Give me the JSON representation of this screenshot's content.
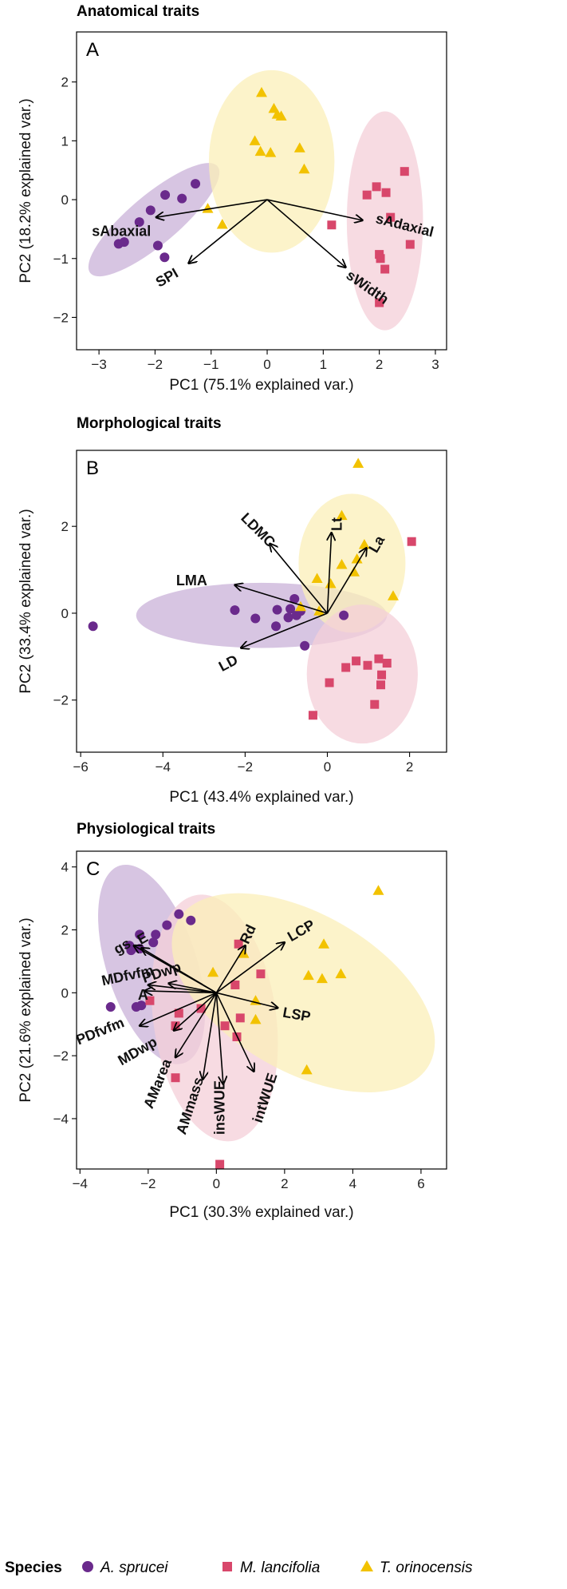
{
  "colors": {
    "A. sprucei": "#6a2a8c",
    "M. lancifolia": "#d8476b",
    "T. orinocensis": "#f2c200",
    "ellipse": {
      "A. sprucei": "#c9b2d8",
      "M. lancifolia": "#f4cfd8",
      "T. orinocensis": "#fbefb8"
    }
  },
  "legend": {
    "title": "Species",
    "items": [
      {
        "label": "A. sprucei",
        "shape": "circle"
      },
      {
        "label": "M. lancifolia",
        "shape": "square"
      },
      {
        "label": "T. orinocensis",
        "shape": "triangle"
      }
    ]
  },
  "chart_data": [
    {
      "type": "scatter",
      "title": "Anatomical traits",
      "panel": "A",
      "xlabel": "PC1 (75.1% explained var.)",
      "ylabel": "PC2 (18.2% explained var.)",
      "xlim": [
        -3.4,
        3.2
      ],
      "ylim": [
        -2.55,
        2.85
      ],
      "xticks": [
        -3,
        -2,
        -1,
        0,
        1,
        2,
        3
      ],
      "yticks": [
        -2,
        -1,
        0,
        1,
        2
      ],
      "series": [
        {
          "name": "A. sprucei",
          "shape": "circle",
          "points": [
            [
              -1.28,
              0.27
            ],
            [
              -1.52,
              0.02
            ],
            [
              -1.82,
              0.08
            ],
            [
              -2.08,
              -0.18
            ],
            [
              -2.28,
              -0.38
            ],
            [
              -2.55,
              -0.72
            ],
            [
              -2.65,
              -0.75
            ],
            [
              -1.95,
              -0.78
            ],
            [
              -1.83,
              -0.98
            ]
          ]
        },
        {
          "name": "M. lancifolia",
          "shape": "square",
          "points": [
            [
              2.45,
              0.48
            ],
            [
              1.95,
              0.22
            ],
            [
              2.12,
              0.12
            ],
            [
              1.78,
              0.08
            ],
            [
              2.2,
              -0.3
            ],
            [
              1.15,
              -0.43
            ],
            [
              2.55,
              -0.76
            ],
            [
              2.0,
              -0.93
            ],
            [
              2.02,
              -1.0
            ],
            [
              2.1,
              -1.18
            ],
            [
              2.0,
              -1.75
            ]
          ]
        },
        {
          "name": "T. orinocensis",
          "shape": "triangle",
          "points": [
            [
              -0.1,
              1.82
            ],
            [
              0.12,
              1.55
            ],
            [
              0.18,
              1.45
            ],
            [
              0.25,
              1.42
            ],
            [
              -0.22,
              1.0
            ],
            [
              -0.12,
              0.82
            ],
            [
              0.06,
              0.8
            ],
            [
              0.58,
              0.88
            ],
            [
              0.66,
              0.52
            ],
            [
              -1.06,
              -0.15
            ],
            [
              -0.8,
              -0.42
            ]
          ]
        }
      ],
      "ellipses": [
        {
          "species": "A. sprucei",
          "center": [
            -2.02,
            -0.34
          ],
          "rx": 1.48,
          "ry": 0.42,
          "angle_deg": 40
        },
        {
          "species": "T. orinocensis",
          "center": [
            0.08,
            0.65
          ],
          "rx": 1.12,
          "ry": 1.55,
          "angle_deg": 0
        },
        {
          "species": "M. lancifolia",
          "center": [
            2.1,
            -0.36
          ],
          "rx": 0.68,
          "ry": 1.86,
          "angle_deg": 0
        }
      ],
      "loadings": [
        {
          "label": "sAbaxial",
          "end": [
            -1.98,
            -0.3
          ],
          "label_pos": [
            -2.6,
            -0.55
          ],
          "label_angle": 0
        },
        {
          "label": "SPI",
          "end": [
            -1.4,
            -1.08
          ],
          "label_pos": [
            -1.78,
            -1.34
          ],
          "label_angle": -30
        },
        {
          "label": "sAdaxial",
          "end": [
            1.7,
            -0.35
          ],
          "label_pos": [
            2.45,
            -0.45
          ],
          "label_angle": 14
        },
        {
          "label": "sWidth",
          "end": [
            1.4,
            -1.15
          ],
          "label_pos": [
            1.78,
            -1.5
          ],
          "label_angle": 35
        }
      ]
    },
    {
      "type": "scatter",
      "title": "Morphological traits",
      "panel": "B",
      "xlabel": "PC1 (43.4% explained var.)",
      "ylabel": "PC2 (33.4% explained var.)",
      "xlim": [
        -6.1,
        2.9
      ],
      "ylim": [
        -3.2,
        3.75
      ],
      "xticks": [
        -6,
        -4,
        -2,
        0,
        2
      ],
      "yticks": [
        -2,
        0,
        2
      ],
      "series": [
        {
          "name": "A. sprucei",
          "shape": "circle",
          "points": [
            [
              -5.7,
              -0.3
            ],
            [
              -2.25,
              0.07
            ],
            [
              -1.75,
              -0.12
            ],
            [
              -1.22,
              0.08
            ],
            [
              -1.25,
              -0.3
            ],
            [
              -0.95,
              -0.1
            ],
            [
              -0.75,
              -0.05
            ],
            [
              -0.55,
              -0.75
            ],
            [
              -0.65,
              0.05
            ],
            [
              -0.8,
              0.33
            ],
            [
              0.4,
              -0.05
            ],
            [
              -0.9,
              0.1
            ]
          ]
        },
        {
          "name": "M. lancifolia",
          "shape": "square",
          "points": [
            [
              2.05,
              1.65
            ],
            [
              0.05,
              -1.6
            ],
            [
              -0.35,
              -2.35
            ],
            [
              0.45,
              -1.25
            ],
            [
              0.98,
              -1.2
            ],
            [
              1.25,
              -1.05
            ],
            [
              1.32,
              -1.42
            ],
            [
              1.45,
              -1.15
            ],
            [
              1.3,
              -1.65
            ],
            [
              1.15,
              -2.1
            ],
            [
              0.7,
              -1.1
            ]
          ]
        },
        {
          "name": "T. orinocensis",
          "shape": "triangle",
          "points": [
            [
              0.75,
              3.45
            ],
            [
              0.35,
              2.25
            ],
            [
              0.9,
              1.58
            ],
            [
              -0.65,
              0.15
            ],
            [
              -0.25,
              0.8
            ],
            [
              0.35,
              1.12
            ],
            [
              0.65,
              0.95
            ],
            [
              0.72,
              1.25
            ],
            [
              0.08,
              0.68
            ],
            [
              1.6,
              0.4
            ],
            [
              -0.2,
              0.05
            ]
          ]
        }
      ],
      "ellipses": [
        {
          "species": "A. sprucei",
          "center": [
            -1.6,
            -0.05
          ],
          "rx": 3.05,
          "ry": 0.75,
          "angle_deg": 0
        },
        {
          "species": "T. orinocensis",
          "center": [
            0.6,
            1.15
          ],
          "rx": 1.3,
          "ry": 1.6,
          "angle_deg": 0
        },
        {
          "species": "M. lancifolia",
          "center": [
            0.85,
            -1.4
          ],
          "rx": 1.35,
          "ry": 1.6,
          "angle_deg": 0
        }
      ],
      "loadings": [
        {
          "label": "LDMC",
          "end": [
            -1.4,
            1.6
          ],
          "label_pos": [
            -1.7,
            1.9
          ],
          "label_angle": 45
        },
        {
          "label": "Lt",
          "end": [
            0.1,
            1.85
          ],
          "label_pos": [
            0.26,
            2.05
          ],
          "label_angle": -90
        },
        {
          "label": "La",
          "end": [
            0.95,
            1.5
          ],
          "label_pos": [
            1.22,
            1.58
          ],
          "label_angle": -60
        },
        {
          "label": "LMA",
          "end": [
            -2.25,
            0.65
          ],
          "label_pos": [
            -3.3,
            0.73
          ],
          "label_angle": 0
        },
        {
          "label": "LD",
          "end": [
            -2.1,
            -0.8
          ],
          "label_pos": [
            -2.4,
            -1.17
          ],
          "label_angle": -28
        }
      ]
    },
    {
      "type": "scatter",
      "title": "Physiological traits",
      "panel": "C",
      "xlabel": "PC1 (30.3% explained var.)",
      "ylabel": "PC2 (21.6% explained var.)",
      "xlim": [
        -4.1,
        6.75
      ],
      "ylim": [
        -5.6,
        4.5
      ],
      "xticks": [
        -4,
        -2,
        0,
        2,
        4,
        6
      ],
      "yticks": [
        -4,
        -2,
        0,
        2,
        4
      ],
      "series": [
        {
          "name": "A. sprucei",
          "shape": "circle",
          "points": [
            [
              -1.1,
              2.5
            ],
            [
              -1.45,
              2.15
            ],
            [
              -0.75,
              2.3
            ],
            [
              -2.25,
              1.85
            ],
            [
              -1.78,
              1.85
            ],
            [
              -2.55,
              1.5
            ],
            [
              -2.25,
              1.4
            ],
            [
              -2.5,
              1.35
            ],
            [
              -1.85,
              1.6
            ],
            [
              -3.1,
              -0.45
            ],
            [
              -2.35,
              -0.45
            ],
            [
              -2.2,
              -0.4
            ]
          ]
        },
        {
          "name": "M. lancifolia",
          "shape": "square",
          "points": [
            [
              0.65,
              1.55
            ],
            [
              1.3,
              0.6
            ],
            [
              0.55,
              0.25
            ],
            [
              -1.95,
              -0.25
            ],
            [
              -1.1,
              -0.65
            ],
            [
              -0.45,
              -0.5
            ],
            [
              -1.2,
              -1.05
            ],
            [
              0.7,
              -0.8
            ],
            [
              0.25,
              -1.05
            ],
            [
              0.6,
              -1.4
            ],
            [
              -1.2,
              -2.7
            ],
            [
              0.1,
              -5.45
            ]
          ]
        },
        {
          "name": "T. orinocensis",
          "shape": "triangle",
          "points": [
            [
              4.75,
              3.25
            ],
            [
              3.15,
              1.55
            ],
            [
              2.7,
              0.55
            ],
            [
              3.1,
              0.45
            ],
            [
              3.65,
              0.6
            ],
            [
              1.15,
              -0.25
            ],
            [
              1.15,
              -0.85
            ],
            [
              -0.1,
              0.65
            ],
            [
              0.8,
              1.25
            ],
            [
              2.65,
              -2.45
            ]
          ]
        }
      ],
      "ellipses": [
        {
          "species": "A. sprucei",
          "center": [
            -1.9,
            0.9
          ],
          "rx": 1.32,
          "ry": 3.3,
          "angle_deg": 18
        },
        {
          "species": "M. lancifolia",
          "center": [
            -0.05,
            -0.8
          ],
          "rx": 1.8,
          "ry": 3.95,
          "angle_deg": 8
        },
        {
          "species": "T. orinocensis",
          "center": [
            2.55,
            0.0
          ],
          "rx": 4.25,
          "ry": 2.5,
          "angle_deg": -30
        }
      ],
      "loadings": [
        {
          "label": "gs",
          "end": [
            -2.42,
            1.5
          ],
          "label_pos": [
            -2.75,
            1.45
          ],
          "label_angle": -30
        },
        {
          "label": "E",
          "end": [
            -2.2,
            1.42
          ],
          "label_pos": [
            -2.15,
            1.7
          ],
          "label_angle": -30
        },
        {
          "label": "PDwp",
          "end": [
            -1.4,
            0.3
          ],
          "label_pos": [
            -1.6,
            0.62
          ],
          "label_angle": -18
        },
        {
          "label": "MDfvfm",
          "end": [
            -2.0,
            0.25
          ],
          "label_pos": [
            -2.6,
            0.52
          ],
          "label_angle": -12
        },
        {
          "label": "A",
          "end": [
            -2.1,
            0.06
          ],
          "label_pos": [
            -2.15,
            -0.1
          ],
          "label_angle": 0
        },
        {
          "label": "PDfvfm",
          "end": [
            -2.25,
            -1.05
          ],
          "label_pos": [
            -3.4,
            -1.25
          ],
          "label_angle": -22
        },
        {
          "label": "MDwp",
          "end": [
            -1.25,
            -1.2
          ],
          "label_pos": [
            -2.3,
            -1.88
          ],
          "label_angle": -30
        },
        {
          "label": "AMarea",
          "end": [
            -1.2,
            -2.05
          ],
          "label_pos": [
            -1.7,
            -2.9
          ],
          "label_angle": -68
        },
        {
          "label": "AMmass",
          "end": [
            -0.4,
            -2.75
          ],
          "label_pos": [
            -0.75,
            -3.6
          ],
          "label_angle": -72
        },
        {
          "label": "insWUE",
          "end": [
            0.2,
            -2.9
          ],
          "label_pos": [
            0.13,
            -3.65
          ],
          "label_angle": -90
        },
        {
          "label": "intWUE",
          "end": [
            1.1,
            -2.5
          ],
          "label_pos": [
            1.45,
            -3.35
          ],
          "label_angle": -72
        },
        {
          "label": "Rd",
          "end": [
            0.85,
            1.5
          ],
          "label_pos": [
            0.95,
            1.85
          ],
          "label_angle": -65
        },
        {
          "label": "LCP",
          "end": [
            2.0,
            1.6
          ],
          "label_pos": [
            2.5,
            1.95
          ],
          "label_angle": -30
        },
        {
          "label": "LSP",
          "end": [
            1.8,
            -0.48
          ],
          "label_pos": [
            2.35,
            -0.72
          ],
          "label_angle": 10
        }
      ]
    }
  ]
}
